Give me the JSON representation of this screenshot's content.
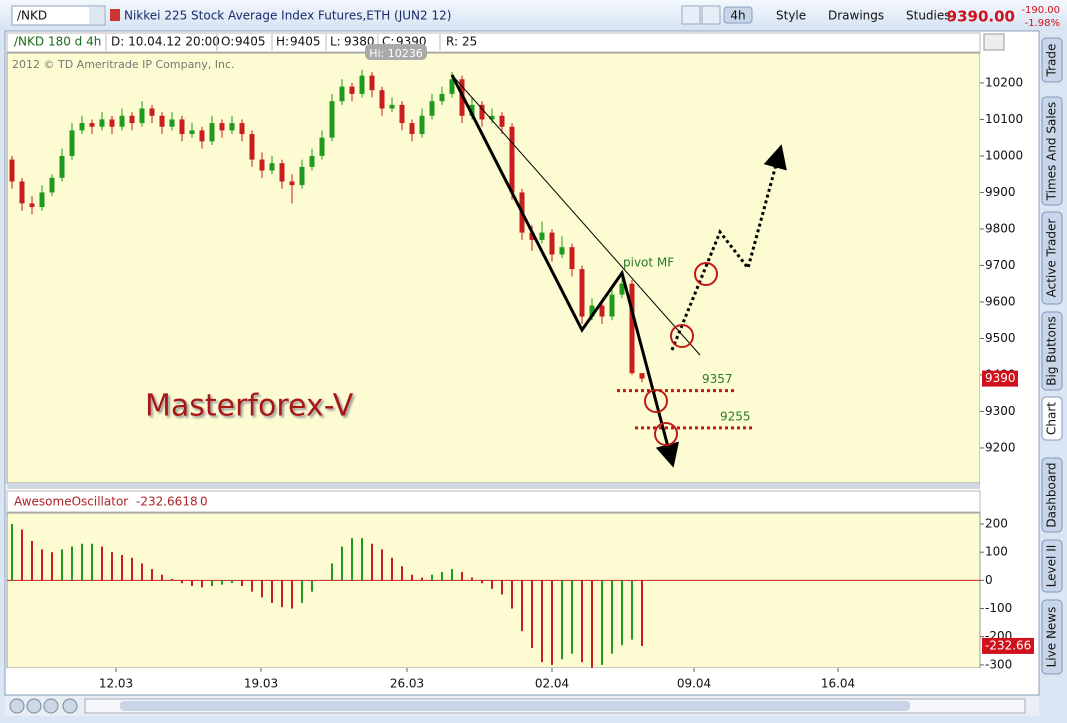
{
  "toolbar": {
    "symbol": "/NKD",
    "description": "Nikkei 225 Stock Average Index Futures,ETH (JUN2 12)",
    "aggregation": "4h",
    "buttons": [
      "Style",
      "Drawings",
      "Studies"
    ],
    "last": "9390.00",
    "change": "-190.00",
    "change_pct": "-1.98%"
  },
  "sidebar_tabs": [
    "Trade",
    "Times And Sales",
    "Active Trader",
    "Big Buttons",
    "Chart",
    "Dashboard",
    "Level II",
    "Live News"
  ],
  "chart_data": {
    "type": "candlestick",
    "header": {
      "symbol_period": "/NKD 180 d 4h",
      "date": "D: 10.04.12 20:00",
      "ohlc_labels": [
        "O:",
        "H:",
        "L:",
        "C:"
      ],
      "range_label": "R:",
      "range": 25
    },
    "copyright": "2012 © TD Ameritrade IP Company, Inc.",
    "high_label": "Hi: 10236",
    "candles": [
      [
        9990,
        10000,
        9910,
        9930
      ],
      [
        9930,
        9940,
        9850,
        9870
      ],
      [
        9870,
        9890,
        9840,
        9860
      ],
      [
        9860,
        9920,
        9850,
        9900
      ],
      [
        9900,
        9950,
        9890,
        9940
      ],
      [
        9940,
        10020,
        9930,
        10000
      ],
      [
        10000,
        10090,
        9990,
        10070
      ],
      [
        10070,
        10110,
        10060,
        10090
      ],
      [
        10090,
        10100,
        10060,
        10080
      ],
      [
        10080,
        10120,
        10070,
        10100
      ],
      [
        10100,
        10110,
        10060,
        10080
      ],
      [
        10080,
        10130,
        10070,
        10110
      ],
      [
        10110,
        10120,
        10070,
        10090
      ],
      [
        10090,
        10150,
        10080,
        10130
      ],
      [
        10130,
        10140,
        10090,
        10110
      ],
      [
        10110,
        10120,
        10060,
        10080
      ],
      [
        10080,
        10120,
        10070,
        10100
      ],
      [
        10100,
        10110,
        10040,
        10060
      ],
      [
        10060,
        10090,
        10050,
        10070
      ],
      [
        10070,
        10080,
        10020,
        10040
      ],
      [
        10040,
        10110,
        10030,
        10090
      ],
      [
        10090,
        10100,
        10050,
        10070
      ],
      [
        10070,
        10110,
        10060,
        10090
      ],
      [
        10090,
        10100,
        10040,
        10060
      ],
      [
        10060,
        10070,
        9970,
        9990
      ],
      [
        9990,
        10010,
        9940,
        9960
      ],
      [
        9960,
        10000,
        9950,
        9980
      ],
      [
        9980,
        9990,
        9910,
        9930
      ],
      [
        9930,
        9950,
        9870,
        9920
      ],
      [
        9920,
        9990,
        9910,
        9970
      ],
      [
        9970,
        10020,
        9960,
        10000
      ],
      [
        10000,
        10070,
        9990,
        10050
      ],
      [
        10050,
        10170,
        10040,
        10150
      ],
      [
        10150,
        10210,
        10140,
        10190
      ],
      [
        10190,
        10200,
        10150,
        10170
      ],
      [
        10170,
        10236,
        10160,
        10220
      ],
      [
        10220,
        10230,
        10160,
        10180
      ],
      [
        10180,
        10190,
        10110,
        10130
      ],
      [
        10130,
        10160,
        10120,
        10140
      ],
      [
        10140,
        10150,
        10070,
        10090
      ],
      [
        10090,
        10100,
        10040,
        10060
      ],
      [
        10060,
        10130,
        10050,
        10110
      ],
      [
        10110,
        10170,
        10100,
        10150
      ],
      [
        10150,
        10190,
        10140,
        10170
      ],
      [
        10170,
        10230,
        10160,
        10210
      ],
      [
        10210,
        10220,
        10090,
        10110
      ],
      [
        10110,
        10160,
        10100,
        10140
      ],
      [
        10140,
        10150,
        10080,
        10100
      ],
      [
        10100,
        10130,
        10090,
        10110
      ],
      [
        10110,
        10120,
        10060,
        10080
      ],
      [
        10080,
        10090,
        9880,
        9900
      ],
      [
        9900,
        9910,
        9770,
        9790
      ],
      [
        9790,
        9810,
        9740,
        9770
      ],
      [
        9770,
        9820,
        9760,
        9790
      ],
      [
        9790,
        9800,
        9710,
        9730
      ],
      [
        9730,
        9780,
        9720,
        9750
      ],
      [
        9750,
        9760,
        9670,
        9690
      ],
      [
        9690,
        9700,
        9540,
        9560
      ],
      [
        9560,
        9610,
        9550,
        9590
      ],
      [
        9590,
        9600,
        9540,
        9560
      ],
      [
        9560,
        9640,
        9550,
        9620
      ],
      [
        9620,
        9680,
        9610,
        9650
      ],
      [
        9650,
        9660,
        9400,
        9405
      ],
      [
        9405,
        9405,
        9380,
        9390
      ]
    ],
    "up_color": "#1f9a1f",
    "down_color": "#c81e1e",
    "ylim": [
      9104,
      10282
    ],
    "yticks": [
      10200,
      10100,
      10000,
      9900,
      9800,
      9700,
      9600,
      9500,
      9400,
      9300,
      9200
    ],
    "xlim": [
      -0.5,
      96.8
    ],
    "xticks": [
      {
        "value": 10.4,
        "label": "12.03"
      },
      {
        "value": 24.9,
        "label": "19.03"
      },
      {
        "value": 39.5,
        "label": "26.03"
      },
      {
        "value": 54,
        "label": "02.04"
      },
      {
        "value": 68.2,
        "label": "09.04"
      },
      {
        "value": 82.6,
        "label": "16.04"
      }
    ],
    "annotations": {
      "watermark": "Masterforex-V",
      "pivot": "pivot MF",
      "levels": [
        9357,
        9255
      ]
    },
    "oscillator": {
      "type": "bar",
      "name": "AwesomeOscillator",
      "zero": 0,
      "last_label": "-232.66",
      "values": [
        200,
        180,
        140,
        110,
        100,
        110,
        120,
        130,
        130,
        120,
        100,
        90,
        80,
        60,
        40,
        20,
        5,
        -10,
        -20,
        -25,
        -20,
        -15,
        -10,
        -20,
        -40,
        -60,
        -80,
        -95,
        -100,
        -80,
        -40,
        0,
        60,
        120,
        150,
        150,
        130,
        110,
        80,
        50,
        20,
        10,
        20,
        30,
        40,
        30,
        10,
        -10,
        -30,
        -50,
        -100,
        -180,
        -240,
        -290,
        -300,
        -280,
        -260,
        -290,
        -310,
        -300,
        -260,
        -230,
        -210,
        -232.6618
      ],
      "ylim": [
        -311,
        239
      ],
      "yticks": [
        200,
        100,
        0,
        -100,
        -200,
        -300
      ]
    }
  }
}
